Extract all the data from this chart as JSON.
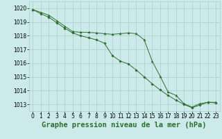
{
  "background_color": "#cceaea",
  "grid_color": "#aacccc",
  "line_color": "#2d6e2d",
  "marker_color": "#2d6e2d",
  "title": "Graphe pression niveau de la mer (hPa)",
  "title_fontsize": 7.5,
  "xlim": [
    -0.5,
    23.5
  ],
  "ylim": [
    1012.5,
    1020.5
  ],
  "yticks": [
    1013,
    1014,
    1015,
    1016,
    1017,
    1018,
    1019,
    1020
  ],
  "xticks": [
    0,
    1,
    2,
    3,
    4,
    5,
    6,
    7,
    8,
    9,
    10,
    11,
    12,
    13,
    14,
    15,
    16,
    17,
    18,
    19,
    20,
    21,
    22,
    23
  ],
  "series1_x": [
    0,
    1,
    2,
    3,
    4,
    5,
    6,
    7,
    8,
    9,
    10,
    11,
    12,
    13,
    14,
    15,
    16,
    17,
    18,
    19,
    20,
    21,
    22,
    23
  ],
  "series1_y": [
    1019.9,
    1019.7,
    1019.5,
    1019.1,
    1018.7,
    1018.3,
    1018.25,
    1018.25,
    1018.2,
    1018.15,
    1018.1,
    1018.15,
    1018.2,
    1018.15,
    1017.7,
    1016.15,
    1015.05,
    1013.9,
    1013.65,
    1013.05,
    1012.8,
    1013.05,
    1013.15,
    1013.15
  ],
  "series2_x": [
    0,
    1,
    2,
    3,
    4,
    5,
    6,
    7,
    8,
    9,
    10,
    11,
    12,
    13,
    14,
    15,
    16,
    17,
    18,
    19,
    20,
    21,
    22,
    23
  ],
  "series2_y": [
    1019.9,
    1019.6,
    1019.35,
    1018.95,
    1018.55,
    1018.2,
    1018.0,
    1017.85,
    1017.7,
    1017.45,
    1016.55,
    1016.15,
    1015.95,
    1015.5,
    1015.0,
    1014.5,
    1014.05,
    1013.65,
    1013.3,
    1013.0,
    1012.75,
    1012.95,
    1013.15,
    1013.1
  ],
  "tick_fontsize": 5.5
}
